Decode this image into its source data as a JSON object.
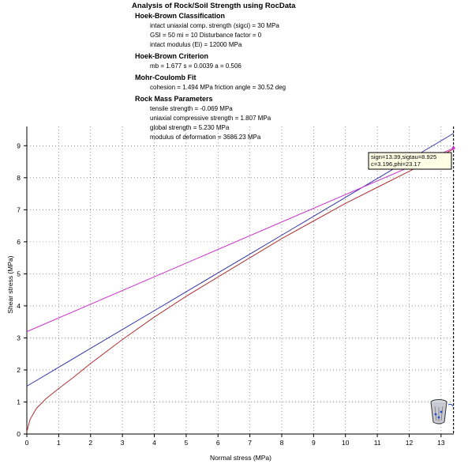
{
  "header": {
    "title": "Analysis of Rock/Soil Strength using RocData",
    "sections": [
      {
        "heading": "Hoek-Brown Classification",
        "lines": [
          "intact uniaxial comp. strength (sigci) = 30 MPa",
          "GSI = 50    mi = 10    Disturbance factor = 0",
          "intact modulus (Ei) = 12000 MPa"
        ]
      },
      {
        "heading": "Hoek-Brown Criterion",
        "lines": [
          "mb = 1.677    s = 0.0039    a = 0.506"
        ]
      },
      {
        "heading": "Mohr-Coulomb Fit",
        "lines": [
          "cohesion = 1.494 MPa    friction angle = 30.52 deg"
        ]
      },
      {
        "heading": "Rock Mass Parameters",
        "lines": [
          "tensile strength = -0.069 MPa",
          "uniaxial compressive strength = 1.807 MPa",
          "global strength = 5.230 MPa",
          "modulus of deformation = 3686.23 MPa"
        ]
      }
    ]
  },
  "chart_data": {
    "type": "line",
    "title": "",
    "xlabel": "Normal stress (MPa)",
    "ylabel": "Shear stress (MPa)",
    "xlim": [
      0,
      13.4
    ],
    "ylim": [
      0,
      9.6
    ],
    "xticks": [
      0,
      1,
      2,
      3,
      4,
      5,
      6,
      7,
      8,
      9,
      10,
      11,
      12,
      13
    ],
    "yticks": [
      0,
      1,
      2,
      3,
      4,
      5,
      6,
      7,
      8,
      9
    ],
    "grid": true,
    "series": [
      {
        "color": "#3333aa",
        "x": [
          0,
          1,
          2,
          3,
          4,
          5,
          6,
          7,
          8,
          9,
          10,
          11,
          12,
          13.4
        ],
        "y": [
          1.494,
          2.083,
          2.672,
          3.262,
          3.851,
          4.44,
          5.029,
          5.618,
          6.207,
          6.797,
          7.386,
          7.975,
          8.564,
          9.389
        ]
      },
      {
        "color": "#b03030",
        "x": [
          0,
          0.1,
          0.3,
          0.6,
          1,
          1.5,
          2,
          3,
          4,
          5,
          6,
          7,
          8,
          9,
          10,
          11,
          12,
          13,
          13.4
        ],
        "y": [
          0.07,
          0.45,
          0.8,
          1.1,
          1.42,
          1.8,
          2.2,
          2.95,
          3.65,
          4.3,
          4.9,
          5.5,
          6.1,
          6.65,
          7.2,
          7.7,
          8.2,
          8.7,
          8.9
        ]
      },
      {
        "color": "#cc33cc",
        "x": [
          0,
          13.39
        ],
        "y": [
          3.196,
          8.925
        ]
      }
    ],
    "vertical_marker": {
      "x": 13.39,
      "color": "#000000",
      "style": "dashed"
    },
    "annotation": {
      "lines": [
        "sign=13.39,sigtau=8.925",
        "c=3.196,phi=23.17"
      ]
    }
  }
}
